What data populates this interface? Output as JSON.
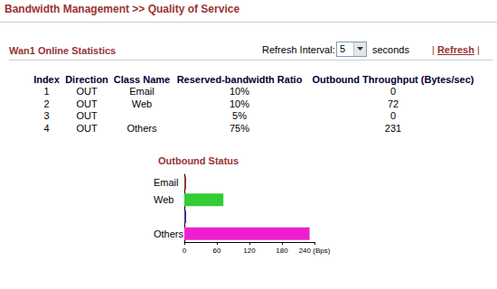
{
  "header": {
    "title": "Bandwidth Management >> Quality of Service"
  },
  "panel": {
    "title": "Wan1 Online Statistics",
    "refresh_label": "Refresh Interval:",
    "refresh_value": "5",
    "refresh_unit": "seconds",
    "link_separator": "|",
    "refresh_link": "Refresh"
  },
  "table": {
    "columns": [
      "Index",
      "Direction",
      "Class Name",
      "Reserved-bandwidth Ratio",
      "Outbound Throughput (Bytes/sec)"
    ],
    "rows": [
      [
        "1",
        "OUT",
        "Email",
        "10%",
        "0"
      ],
      [
        "2",
        "OUT",
        "Web",
        "10%",
        "72"
      ],
      [
        "3",
        "OUT",
        "",
        "5%",
        "0"
      ],
      [
        "4",
        "OUT",
        "Others",
        "75%",
        "231"
      ]
    ]
  },
  "chart_data": {
    "type": "bar",
    "orientation": "horizontal",
    "title": "Outbound Status",
    "categories": [
      "Email",
      "Web",
      null,
      "Others"
    ],
    "values": [
      0,
      72,
      0,
      231
    ],
    "colors": [
      "#993333",
      "#33cc33",
      "#333399",
      "#ee1fd0"
    ],
    "xlim": [
      0,
      240
    ],
    "xticks": [
      0,
      60,
      120,
      180,
      {
        "value": 240,
        "label": "240 (Bps)"
      }
    ],
    "grid": false
  }
}
